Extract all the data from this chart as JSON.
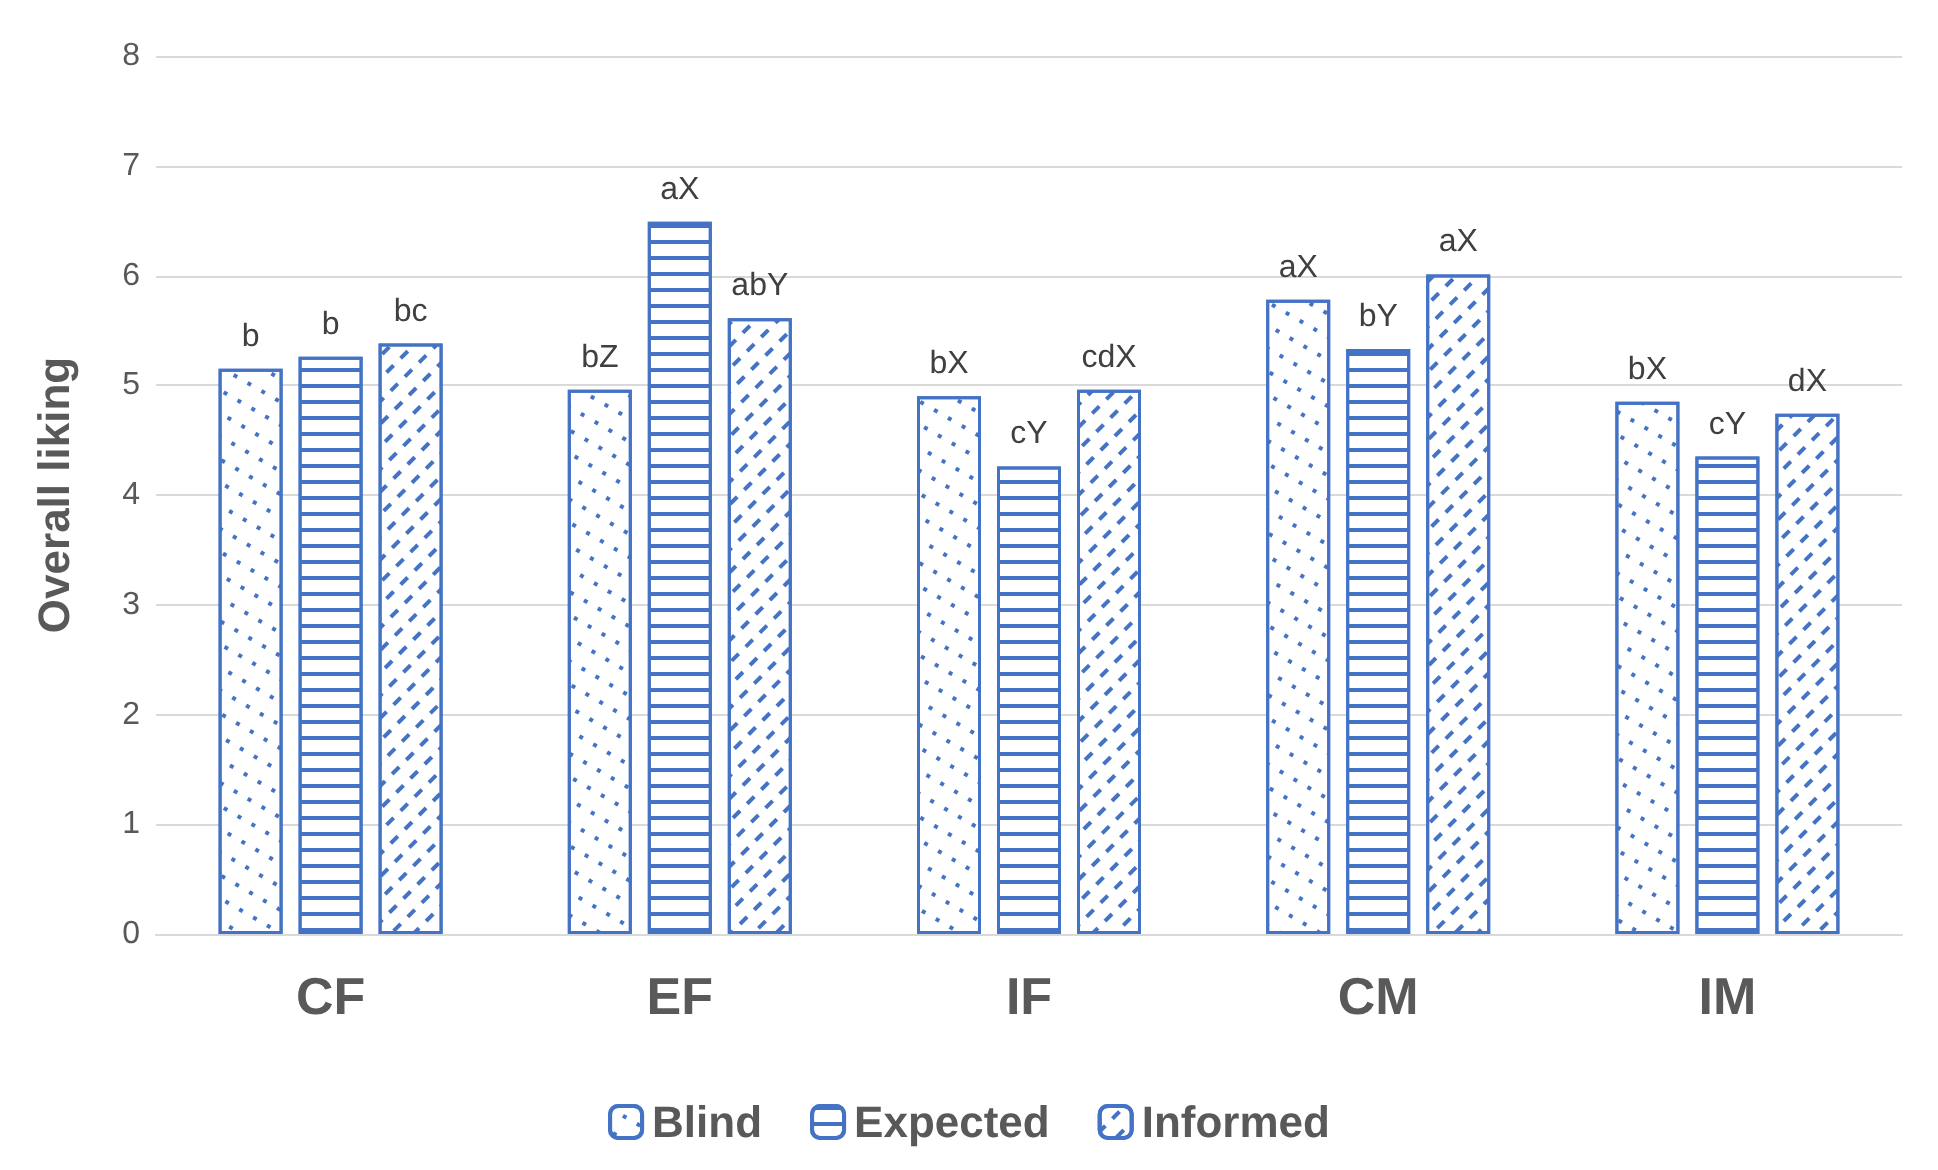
{
  "chart_data": {
    "type": "bar",
    "ylabel": "Overall liking",
    "categories": [
      "CF",
      "EF",
      "IF",
      "CM",
      "IM"
    ],
    "series": [
      {
        "name": "Blind",
        "color": "#4472c4",
        "values": [
          5.15,
          4.96,
          4.9,
          5.78,
          4.85
        ],
        "value_labels": [
          "b",
          "bZ",
          "bX",
          "aX",
          "bX"
        ]
      },
      {
        "name": "Expected",
        "color": "#4472c4",
        "values": [
          5.26,
          6.49,
          4.26,
          5.33,
          4.35
        ],
        "value_labels": [
          "b",
          "aX",
          "cY",
          "bY",
          "cY"
        ]
      },
      {
        "name": "Informed",
        "color": "#4472c4",
        "values": [
          5.38,
          5.61,
          4.96,
          6.01,
          4.74
        ],
        "value_labels": [
          "bc",
          "abY",
          "cdX",
          "aX",
          "dX"
        ]
      }
    ],
    "ylim": [
      0,
      8
    ],
    "yticks": [
      0,
      1,
      2,
      3,
      4,
      5,
      6,
      7,
      8
    ],
    "grid": "y",
    "legend": "bottom"
  }
}
